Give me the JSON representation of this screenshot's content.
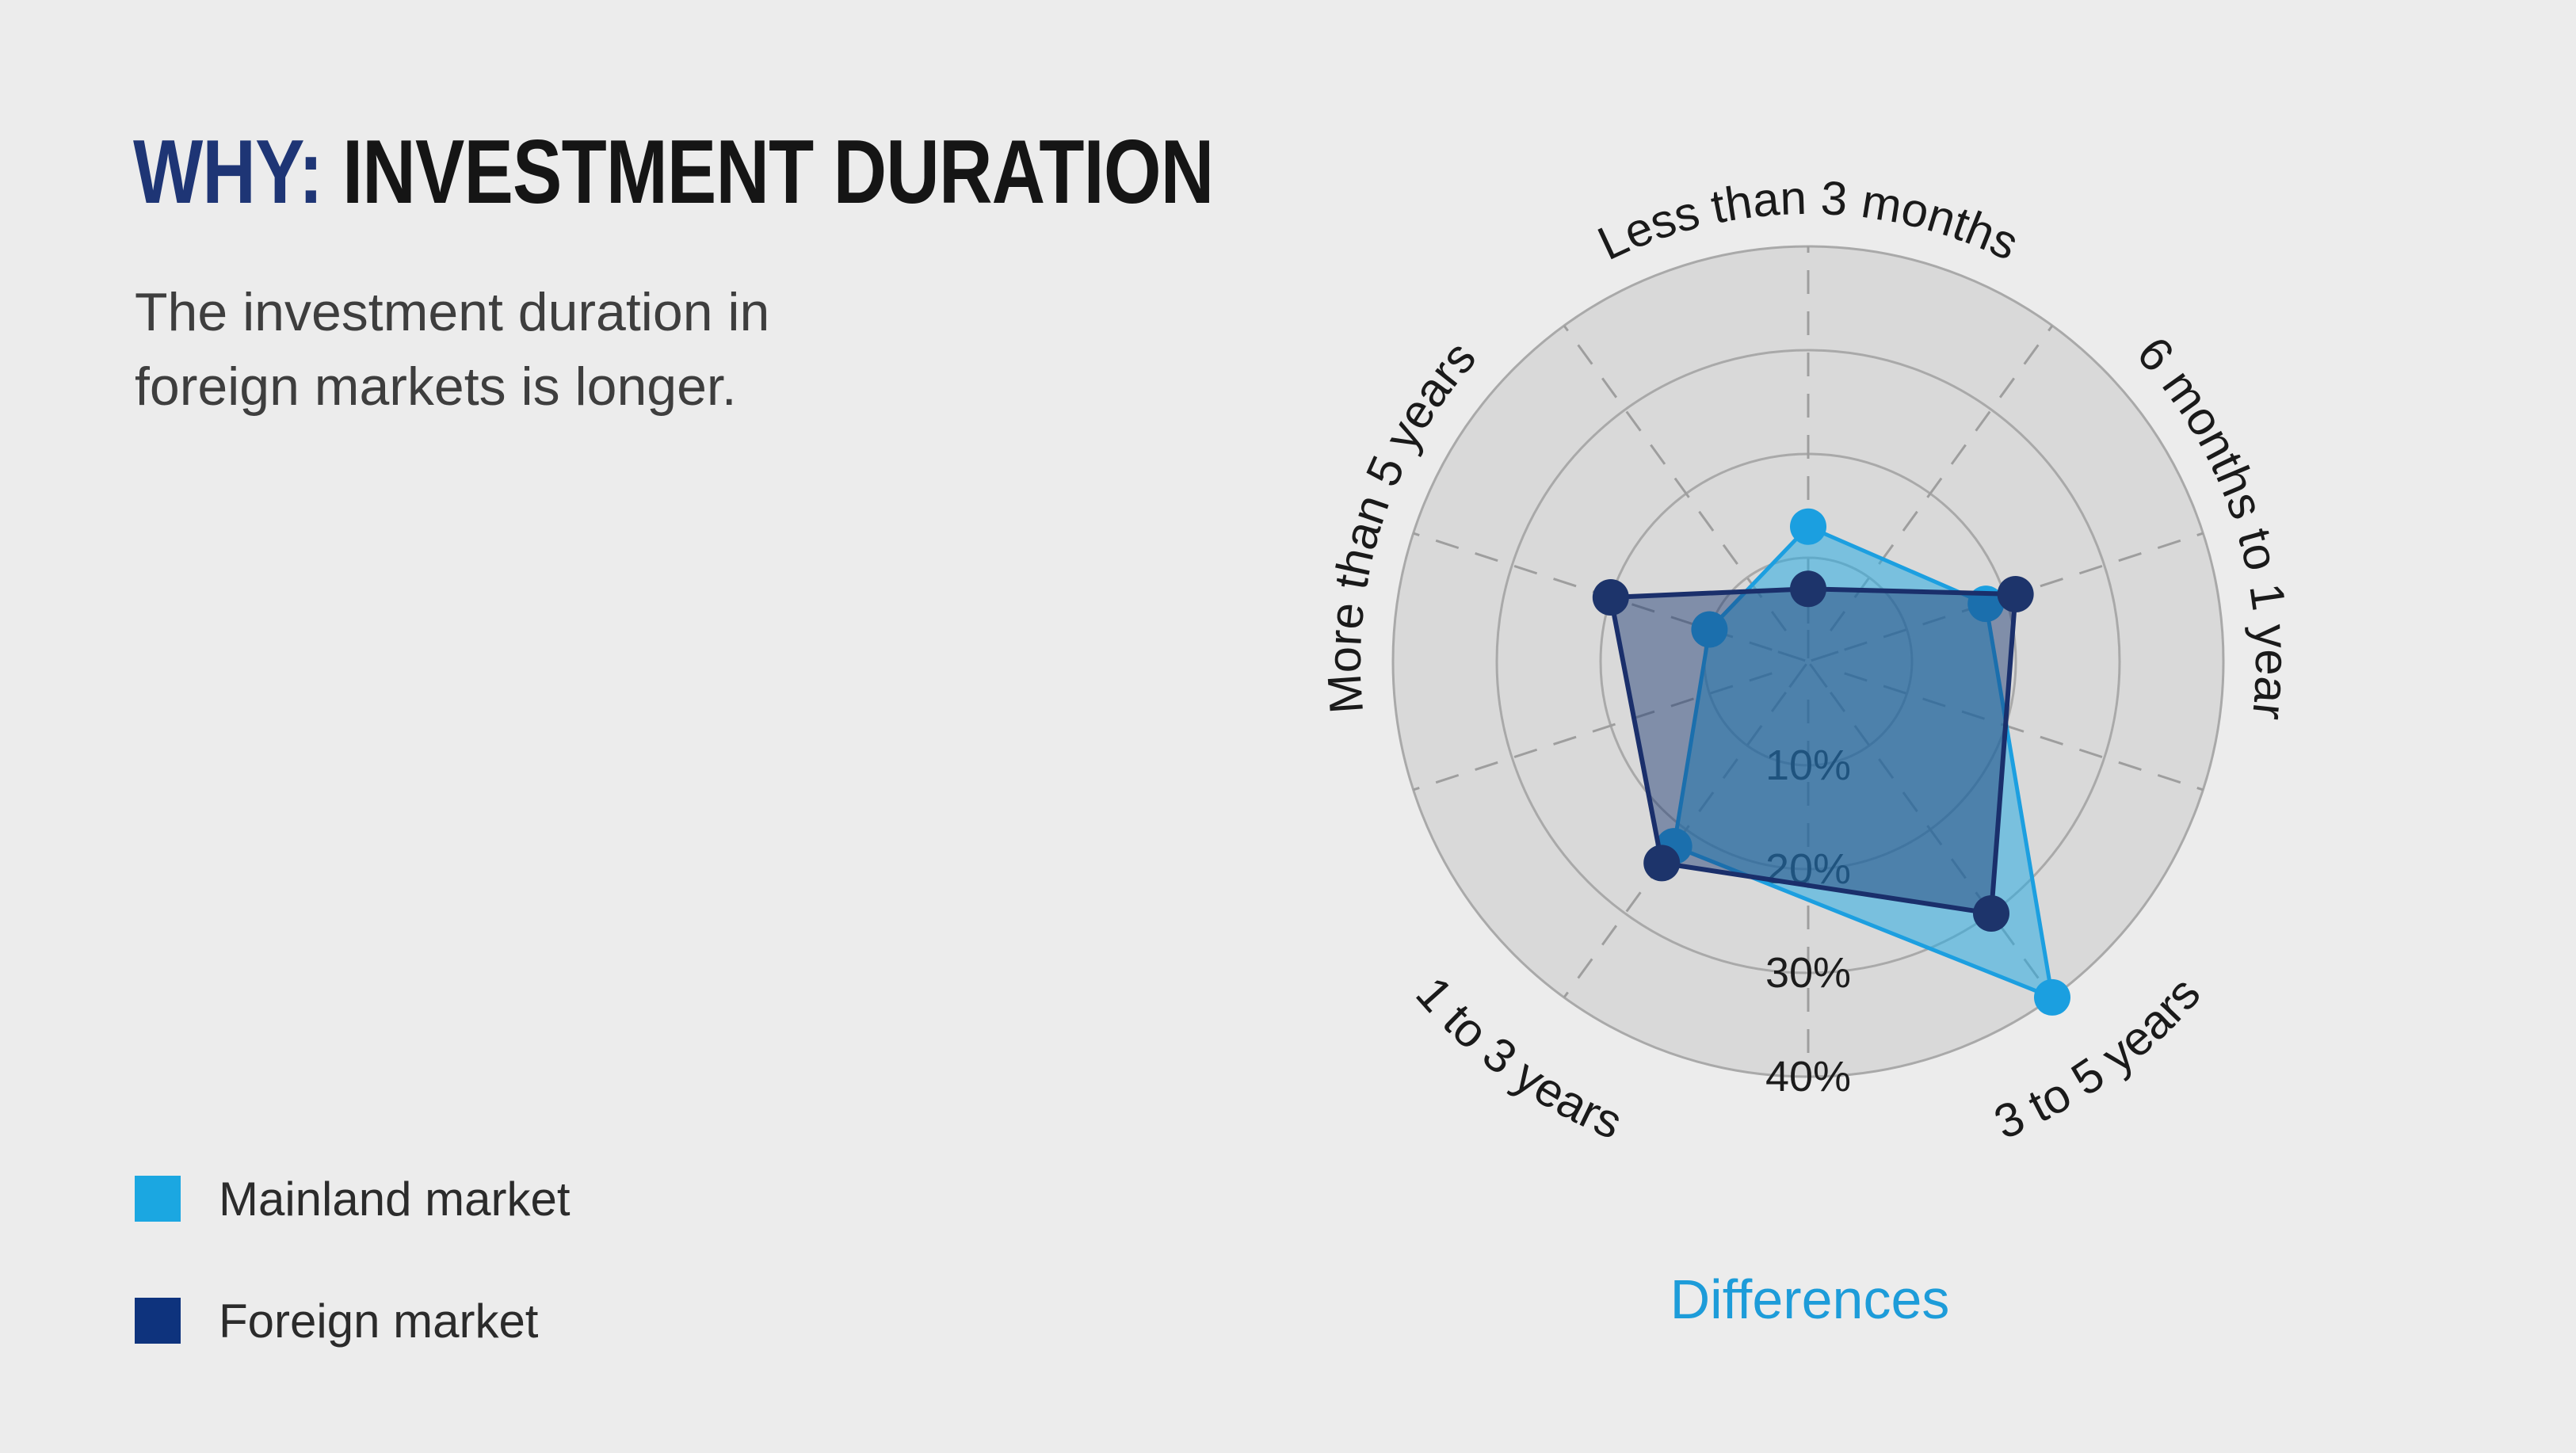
{
  "page": {
    "background": "#ECECEC"
  },
  "header": {
    "title_prefix": "WHY:",
    "title_rest": " INVESTMENT DURATION",
    "title_prefix_color": "#1E3575",
    "title_rest_color": "#151515",
    "subtitle_line1": "The investment duration in",
    "subtitle_line2": "foreign markets is longer.",
    "subtitle_color": "#3E3E3E"
  },
  "legend": {
    "items": [
      {
        "label": "Mainland market",
        "color": "#1BA7E1"
      },
      {
        "label": "Foreign market",
        "color": "#0E337D"
      }
    ]
  },
  "chart_data": {
    "type": "radar",
    "title": "Differences",
    "title_color": "#1D9CD9",
    "categories": [
      "Less than 3 months",
      "6 months to 1 year",
      "3 to 5 years",
      "1 to 3 years",
      "More than 5 years"
    ],
    "series": [
      {
        "name": "Mainland market",
        "values": [
          13,
          18,
          40,
          22,
          10
        ],
        "line_color": "#1C9FE0",
        "fill_color": "rgba(41,171,226,0.55)",
        "dot_color": "#1B9FE0"
      },
      {
        "name": "Foreign market",
        "values": [
          7,
          21,
          30,
          24,
          20
        ],
        "line_color": "#1A2F6B",
        "fill_color": "rgba(28,58,114,0.47)",
        "dot_color": "#1D346B"
      }
    ],
    "radial_ticks": [
      {
        "label": "10%",
        "value": 10
      },
      {
        "label": "20%",
        "value": 20
      },
      {
        "label": "30%",
        "value": 30
      },
      {
        "label": "40%",
        "value": 40
      }
    ],
    "rmax": 40,
    "axis_start": "top",
    "grid": {
      "disk_fill": "#D9D9D9",
      "circle_color": "#A9A9A9",
      "spoke_color": "#9E9E9E",
      "tick_label_color": "#1C1C1C",
      "category_label_color": "#1A1A1A"
    },
    "legend_position": "bottom-left",
    "grid_circles_every_percent": 10,
    "spokes_every_degrees": 36
  }
}
